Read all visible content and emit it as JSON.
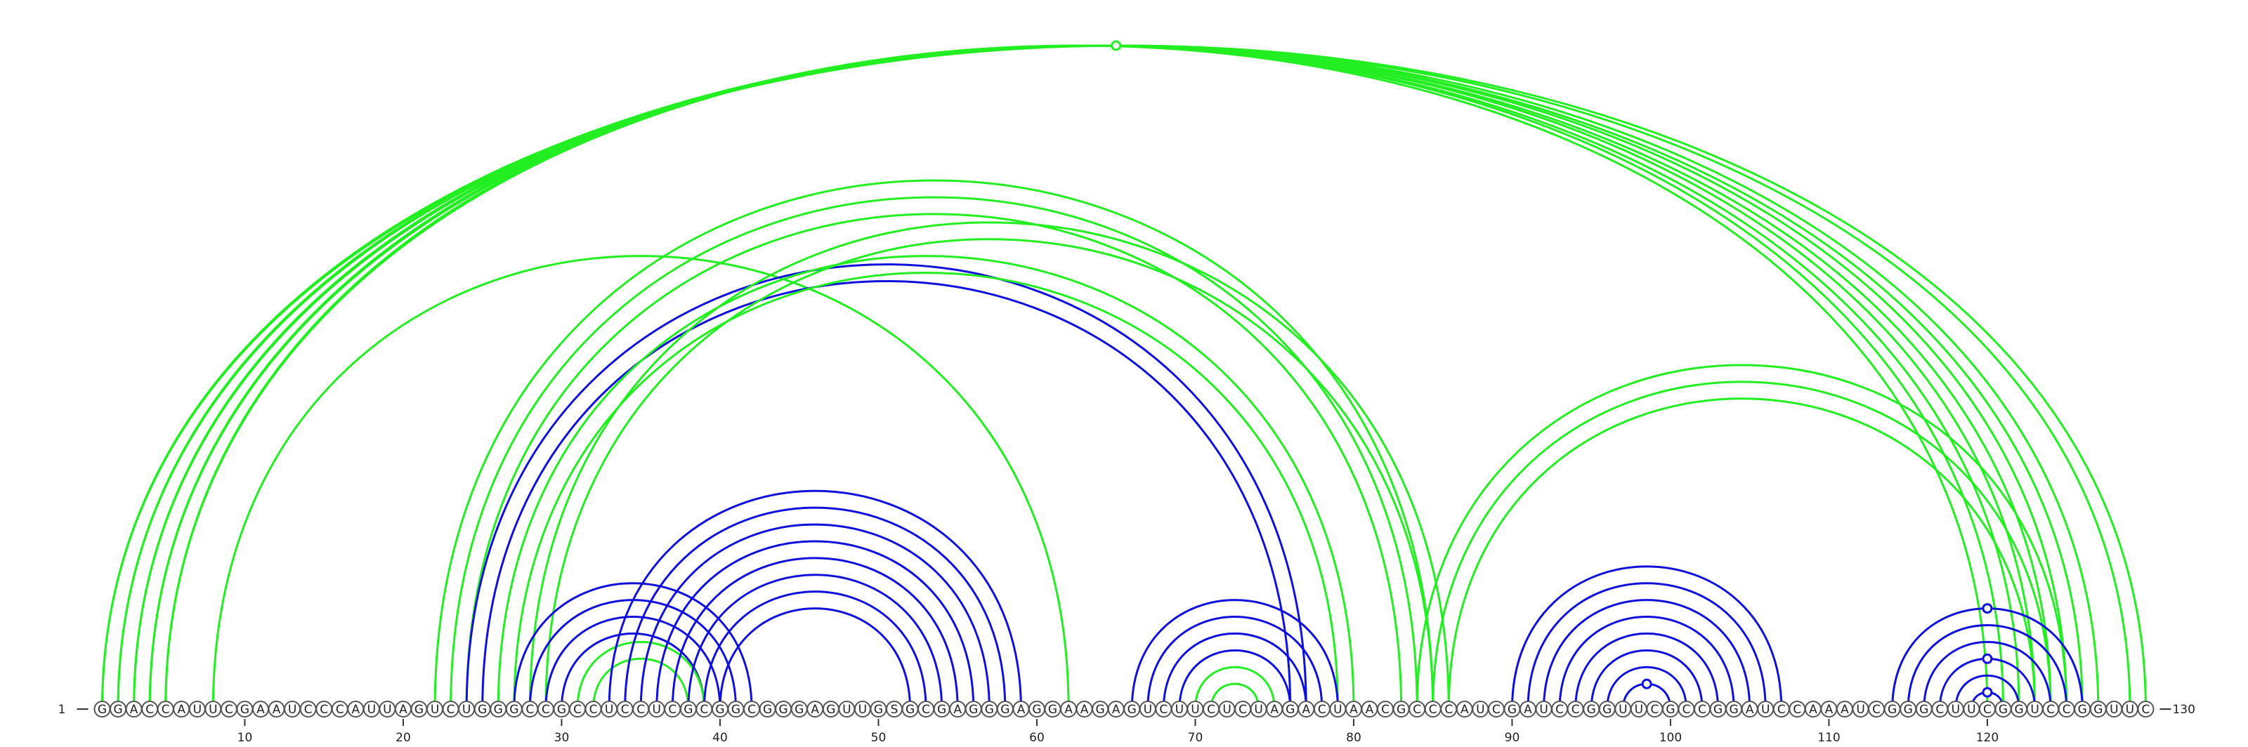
{
  "sequence": "GGACCAUUCGAAUCCCAUUAGUCUGGGCCGCCUCCUCGCGGCGGGAGUUGSGCGAGGGAGGAAGAGUCUUCUCUAGACUAACGCCCAUCGAUCCGGUUCGCCGGAUCCAAAUCGGGCUUCGGUCCGGUUC",
  "start_label": "1",
  "end_label": "130",
  "position_ticks": [
    10,
    20,
    30,
    40,
    50,
    60,
    70,
    80,
    90,
    100,
    110,
    120
  ],
  "colors": {
    "green": "#22ee22",
    "blue": "#1010dd"
  },
  "arcs": [
    {
      "color": "green",
      "i": 1,
      "j": 130
    },
    {
      "color": "green",
      "i": 1,
      "j": 129
    },
    {
      "color": "green",
      "i": 2,
      "j": 127
    },
    {
      "color": "green",
      "i": 2,
      "j": 126
    },
    {
      "color": "green",
      "i": 3,
      "j": 125
    },
    {
      "color": "green",
      "i": 3,
      "j": 124
    },
    {
      "color": "green",
      "i": 4,
      "j": 123
    },
    {
      "color": "green",
      "i": 4,
      "j": 122
    },
    {
      "color": "green",
      "i": 5,
      "j": 121
    },
    {
      "color": "green",
      "i": 5,
      "j": 120
    },
    {
      "color": "green",
      "i": 8,
      "j": 62
    },
    {
      "color": "green",
      "i": 22,
      "j": 85
    },
    {
      "color": "green",
      "i": 23,
      "j": 84
    },
    {
      "color": "green",
      "i": 24,
      "j": 83
    },
    {
      "color": "blue",
      "i": 24,
      "j": 77
    },
    {
      "color": "blue",
      "i": 25,
      "j": 76
    },
    {
      "color": "green",
      "i": 26,
      "j": 80
    },
    {
      "color": "green",
      "i": 27,
      "j": 79
    },
    {
      "color": "green",
      "i": 28,
      "j": 86
    },
    {
      "color": "green",
      "i": 29,
      "j": 85
    },
    {
      "color": "blue",
      "i": 27,
      "j": 42
    },
    {
      "color": "blue",
      "i": 28,
      "j": 41
    },
    {
      "color": "blue",
      "i": 29,
      "j": 40
    },
    {
      "color": "blue",
      "i": 30,
      "j": 39
    },
    {
      "color": "green",
      "i": 31,
      "j": 39
    },
    {
      "color": "green",
      "i": 32,
      "j": 38
    },
    {
      "color": "blue",
      "i": 33,
      "j": 59
    },
    {
      "color": "blue",
      "i": 34,
      "j": 58
    },
    {
      "color": "blue",
      "i": 35,
      "j": 57
    },
    {
      "color": "blue",
      "i": 36,
      "j": 56
    },
    {
      "color": "blue",
      "i": 37,
      "j": 55
    },
    {
      "color": "blue",
      "i": 38,
      "j": 54
    },
    {
      "color": "blue",
      "i": 39,
      "j": 53
    },
    {
      "color": "blue",
      "i": 40,
      "j": 52
    },
    {
      "color": "blue",
      "i": 66,
      "j": 79
    },
    {
      "color": "blue",
      "i": 67,
      "j": 78
    },
    {
      "color": "blue",
      "i": 68,
      "j": 77
    },
    {
      "color": "blue",
      "i": 69,
      "j": 76
    },
    {
      "color": "green",
      "i": 70,
      "j": 75
    },
    {
      "color": "green",
      "i": 71,
      "j": 74
    },
    {
      "color": "green",
      "i": 84,
      "j": 125
    },
    {
      "color": "green",
      "i": 85,
      "j": 124
    },
    {
      "color": "green",
      "i": 86,
      "j": 123
    },
    {
      "color": "blue",
      "i": 90,
      "j": 107
    },
    {
      "color": "blue",
      "i": 91,
      "j": 106
    },
    {
      "color": "blue",
      "i": 92,
      "j": 105
    },
    {
      "color": "blue",
      "i": 93,
      "j": 104
    },
    {
      "color": "blue",
      "i": 94,
      "j": 103
    },
    {
      "color": "blue",
      "i": 95,
      "j": 102
    },
    {
      "color": "blue",
      "i": 96,
      "j": 101
    },
    {
      "color": "blue",
      "i": 97,
      "j": 100
    },
    {
      "color": "blue",
      "i": 114,
      "j": 126
    },
    {
      "color": "blue",
      "i": 115,
      "j": 125
    },
    {
      "color": "blue",
      "i": 116,
      "j": 124
    },
    {
      "color": "blue",
      "i": 117,
      "j": 123
    },
    {
      "color": "blue",
      "i": 118,
      "j": 122
    },
    {
      "color": "blue",
      "i": 119,
      "j": 121
    }
  ],
  "markers": [
    {
      "color": "green",
      "i": 1,
      "j": 129
    },
    {
      "color": "blue",
      "i": 114,
      "j": 126
    },
    {
      "color": "blue",
      "i": 117,
      "j": 123
    },
    {
      "color": "blue",
      "i": 119,
      "j": 121
    },
    {
      "color": "blue",
      "i": 97,
      "j": 100
    }
  ]
}
